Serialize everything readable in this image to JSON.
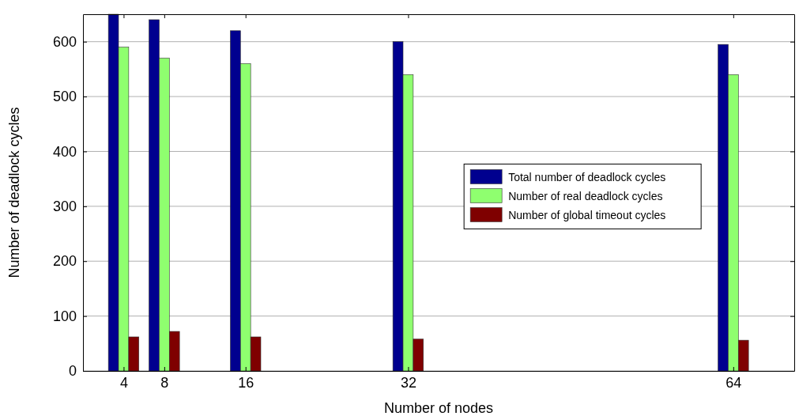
{
  "chart_data": {
    "type": "bar",
    "xlabel": "Number of nodes",
    "ylabel": "Number of deadlock cycles",
    "x": [
      4,
      8,
      16,
      32,
      64
    ],
    "series": [
      {
        "name": "Total number of deadlock cycles",
        "color": "#00008f",
        "values": [
          650,
          640,
          620,
          600,
          595
        ]
      },
      {
        "name": "Number of real deadlock cycles",
        "color": "#8fff6f",
        "values": [
          590,
          570,
          560,
          540,
          540
        ]
      },
      {
        "name": "Number of global timeout cycles",
        "color": "#7f0000",
        "values": [
          62,
          72,
          62,
          58,
          56
        ]
      }
    ],
    "xlim": [
      0,
      70
    ],
    "xticks": [
      4,
      8,
      16,
      32,
      64
    ],
    "ylim": [
      0,
      650
    ],
    "yticks": [
      0,
      100,
      200,
      300,
      400,
      500,
      600
    ],
    "grid": "y",
    "legend": "right"
  }
}
